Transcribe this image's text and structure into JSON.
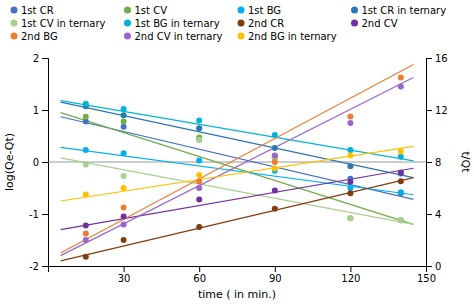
{
  "chart_data": {
    "type": "scatter",
    "xlabel": "time ( in min.)",
    "ylabel": "log(Qe-Qt)",
    "y2label": "t/Qt",
    "xlim": [
      0,
      150
    ],
    "ylim": [
      -2,
      2
    ],
    "y2lim": [
      0,
      16
    ],
    "xticks": [
      30,
      60,
      90,
      120,
      150
    ],
    "yticks": [
      -2,
      -1,
      0,
      1,
      2
    ],
    "y2ticks": [
      0,
      4,
      8,
      12,
      16
    ],
    "hlines": [
      0
    ],
    "grid": false,
    "legend": "top",
    "series": [
      {
        "name": "1st CR",
        "color": "#4472C4",
        "axis": "y",
        "marker": "circle",
        "x": [
          15,
          30,
          60,
          90,
          120,
          140
        ],
        "values": [
          0.78,
          0.68,
          0.43,
          0.1,
          -0.32,
          -0.6
        ],
        "trend": {
          "x": [
            5,
            145
          ],
          "values": [
            0.87,
            -0.72
          ]
        }
      },
      {
        "name": "1st CV",
        "color": "#70AD47",
        "axis": "y",
        "marker": "circle",
        "x": [
          15,
          30,
          60,
          90,
          120,
          140
        ],
        "values": [
          0.87,
          0.78,
          0.47,
          0.07,
          -1.08,
          -1.12
        ],
        "trend": {
          "x": [
            5,
            145
          ],
          "values": [
            0.95,
            -1.2
          ]
        }
      },
      {
        "name": "1st BG",
        "color": "#00B0F0",
        "axis": "y",
        "marker": "circle",
        "x": [
          15,
          30,
          60,
          90,
          120,
          140
        ],
        "values": [
          0.23,
          0.17,
          0.03,
          -0.17,
          -0.5,
          -0.58
        ],
        "trend": {
          "x": [
            5,
            145
          ],
          "values": [
            0.28,
            -0.63
          ]
        }
      },
      {
        "name": "1st CR in ternary",
        "color": "#2E75B6",
        "axis": "y",
        "marker": "circle",
        "x": [
          15,
          30,
          60,
          90,
          120,
          140
        ],
        "values": [
          1.07,
          0.9,
          0.65,
          0.27,
          -0.08,
          -0.22
        ],
        "trend": {
          "x": [
            5,
            145
          ],
          "values": [
            1.15,
            -0.3
          ]
        }
      },
      {
        "name": "1st CV in ternary",
        "color": "#A9D18E",
        "axis": "y",
        "marker": "circle",
        "x": [
          15,
          30,
          60,
          90,
          120,
          140
        ],
        "values": [
          -0.05,
          -0.27,
          0.43,
          0.07,
          -1.08,
          -1.12
        ],
        "trend": {
          "x": [
            5,
            145
          ],
          "values": [
            0.08,
            -1.2
          ]
        }
      },
      {
        "name": "1st BG in ternary",
        "color": "#00B4D8",
        "axis": "y",
        "marker": "circle",
        "x": [
          15,
          30,
          60,
          90,
          120,
          140
        ],
        "values": [
          1.12,
          1.02,
          0.8,
          0.52,
          0.23,
          0.1
        ],
        "trend": {
          "x": [
            5,
            145
          ],
          "values": [
            1.18,
            0.02
          ]
        }
      },
      {
        "name": "2nd CR",
        "color": "#843C0C",
        "axis": "y",
        "marker": "circle",
        "x": [
          15,
          30,
          60,
          90,
          120,
          140
        ],
        "values": [
          -1.82,
          -1.5,
          -1.25,
          -0.9,
          -0.6,
          -0.37
        ],
        "trend": {
          "x": [
            5,
            145
          ],
          "values": [
            -1.9,
            -0.3
          ]
        }
      },
      {
        "name": "2nd CV",
        "color": "#7030A0",
        "axis": "y",
        "marker": "circle",
        "x": [
          15,
          30,
          60,
          90,
          120,
          140
        ],
        "values": [
          -1.22,
          -1.05,
          -0.72,
          -0.55,
          -0.38,
          -0.2
        ],
        "trend": {
          "x": [
            5,
            145
          ],
          "values": [
            -1.3,
            -0.12
          ]
        }
      },
      {
        "name": "2nd BG",
        "color": "#ED7D31",
        "axis": "y2",
        "marker": "circle",
        "x": [
          15,
          30,
          60,
          90,
          120,
          140
        ],
        "values": [
          2.5,
          4.5,
          6.5,
          8.0,
          11.5,
          14.5
        ],
        "trend": {
          "x": [
            5,
            145
          ],
          "values": [
            1.0,
            15.5
          ]
        }
      },
      {
        "name": "2nd CV in ternary",
        "color": "#9966CC",
        "axis": "y2",
        "marker": "circle",
        "x": [
          15,
          30,
          60,
          90,
          120,
          140
        ],
        "values": [
          2.0,
          3.2,
          6.0,
          8.5,
          11.0,
          13.8
        ],
        "trend": {
          "x": [
            5,
            145
          ],
          "values": [
            0.8,
            14.5
          ]
        }
      },
      {
        "name": "2nd BG in ternary",
        "color": "#FFC000",
        "axis": "y2",
        "marker": "circle",
        "x": [
          15,
          30,
          60,
          90,
          120,
          140
        ],
        "values": [
          5.5,
          6.0,
          7.0,
          7.5,
          8.5,
          8.8
        ],
        "trend": {
          "x": [
            5,
            145
          ],
          "values": [
            5.0,
            9.2
          ]
        }
      }
    ]
  }
}
